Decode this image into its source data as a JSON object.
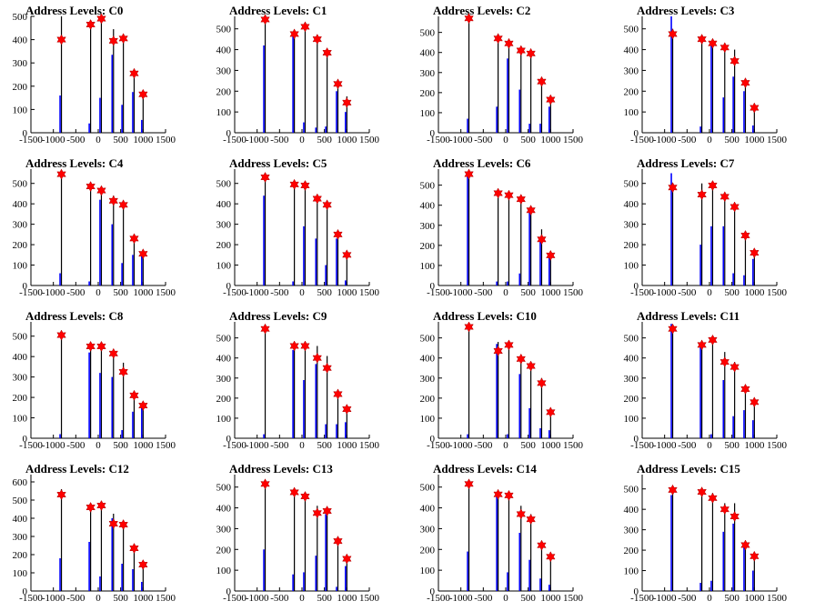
{
  "colors": {
    "black": "#000000",
    "blue": "#0000ff",
    "red": "#ff0000"
  },
  "chart_data": [
    {
      "type": "bar",
      "title": "Address Levels: C0",
      "xlim": [
        -1500,
        1500
      ],
      "ylim": [
        0,
        500
      ],
      "yticks": [
        0,
        100,
        200,
        300,
        400,
        500
      ],
      "xticks": [
        -1500,
        -1000,
        -500,
        0,
        500,
        1000,
        1500
      ],
      "levels": [
        -820,
        -170,
        70,
        340,
        560,
        800,
        1000
      ],
      "black": [
        500,
        480,
        495,
        445,
        420,
        265,
        175
      ],
      "blue": [
        160,
        40,
        150,
        335,
        120,
        175,
        55
      ],
      "markers": [
        400,
        465,
        490,
        395,
        405,
        255,
        165
      ]
    },
    {
      "type": "bar",
      "title": "Address Levels: C1",
      "xlim": [
        -1500,
        1500
      ],
      "ylim": [
        0,
        560
      ],
      "yticks": [
        0,
        100,
        200,
        300,
        400,
        500
      ],
      "xticks": [
        -1500,
        -1000,
        -500,
        0,
        500,
        1000,
        1500
      ],
      "levels": [
        -820,
        -170,
        70,
        340,
        560,
        800,
        1000
      ],
      "black": [
        560,
        495,
        525,
        470,
        400,
        245,
        175
      ],
      "blue": [
        420,
        470,
        50,
        25,
        30,
        200,
        100
      ],
      "markers": [
        545,
        475,
        510,
        450,
        385,
        235,
        145
      ]
    },
    {
      "type": "bar",
      "title": "Address Levels: C2",
      "xlim": [
        -1500,
        1500
      ],
      "ylim": [
        0,
        580
      ],
      "yticks": [
        0,
        100,
        200,
        300,
        400,
        500
      ],
      "xticks": [
        -1500,
        -1000,
        -500,
        0,
        500,
        1000,
        1500
      ],
      "levels": [
        -820,
        -170,
        70,
        340,
        560,
        800,
        1000
      ],
      "black": [
        580,
        490,
        460,
        420,
        410,
        270,
        180
      ],
      "blue": [
        70,
        130,
        370,
        215,
        45,
        45,
        130
      ],
      "markers": [
        570,
        470,
        445,
        410,
        395,
        255,
        165
      ]
    },
    {
      "type": "bar",
      "title": "Address Levels: C3",
      "xlim": [
        -1500,
        1500
      ],
      "ylim": [
        0,
        560
      ],
      "yticks": [
        0,
        100,
        200,
        300,
        400,
        500
      ],
      "xticks": [
        -1500,
        -1000,
        -500,
        0,
        500,
        1000,
        1500
      ],
      "levels": [
        -820,
        -170,
        70,
        340,
        560,
        800,
        1000
      ],
      "black": [
        500,
        465,
        450,
        420,
        400,
        255,
        130
      ],
      "blue": [
        560,
        30,
        430,
        170,
        270,
        200,
        35
      ],
      "markers": [
        475,
        450,
        430,
        410,
        345,
        240,
        120
      ]
    },
    {
      "type": "bar",
      "title": "Address Levels: C4",
      "xlim": [
        -1500,
        1500
      ],
      "ylim": [
        0,
        570
      ],
      "yticks": [
        0,
        100,
        200,
        300,
        400,
        500
      ],
      "xticks": [
        -1500,
        -1000,
        -500,
        0,
        500,
        1000,
        1500
      ],
      "levels": [
        -820,
        -170,
        70,
        340,
        560,
        800,
        1000
      ],
      "black": [
        560,
        490,
        475,
        440,
        400,
        240,
        165
      ],
      "blue": [
        60,
        20,
        420,
        300,
        110,
        150,
        160
      ],
      "markers": [
        545,
        485,
        465,
        415,
        395,
        230,
        155
      ]
    },
    {
      "type": "bar",
      "title": "Address Levels: C5",
      "xlim": [
        -1500,
        1500
      ],
      "ylim": [
        0,
        570
      ],
      "yticks": [
        0,
        100,
        200,
        300,
        400,
        500
      ],
      "xticks": [
        -1500,
        -1000,
        -500,
        0,
        500,
        1000,
        1500
      ],
      "levels": [
        -820,
        -170,
        70,
        340,
        560,
        800,
        1000
      ],
      "black": [
        545,
        500,
        480,
        430,
        400,
        260,
        160
      ],
      "blue": [
        440,
        20,
        290,
        230,
        100,
        230,
        25
      ],
      "markers": [
        530,
        495,
        490,
        425,
        395,
        250,
        150
      ]
    },
    {
      "type": "bar",
      "title": "Address Levels: C6",
      "xlim": [
        -1500,
        1500
      ],
      "ylim": [
        0,
        580
      ],
      "yticks": [
        0,
        100,
        200,
        300,
        400,
        500
      ],
      "xticks": [
        -1500,
        -1000,
        -500,
        0,
        500,
        1000,
        1500
      ],
      "levels": [
        -820,
        -170,
        70,
        340,
        560,
        800,
        1000
      ],
      "black": [
        570,
        470,
        460,
        445,
        390,
        280,
        165
      ],
      "blue": [
        550,
        20,
        20,
        60,
        370,
        220,
        150
      ],
      "markers": [
        555,
        460,
        450,
        430,
        375,
        230,
        150
      ]
    },
    {
      "type": "bar",
      "title": "Address Levels: C7",
      "xlim": [
        -1500,
        1500
      ],
      "ylim": [
        0,
        570
      ],
      "yticks": [
        0,
        100,
        200,
        300,
        400,
        500
      ],
      "xticks": [
        -1500,
        -1000,
        -500,
        0,
        500,
        1000,
        1500
      ],
      "levels": [
        -820,
        -170,
        70,
        340,
        560,
        800,
        1000
      ],
      "black": [
        500,
        500,
        500,
        440,
        400,
        260,
        170
      ],
      "blue": [
        550,
        200,
        290,
        290,
        60,
        50,
        130
      ],
      "markers": [
        480,
        445,
        490,
        435,
        385,
        245,
        160
      ]
    },
    {
      "type": "bar",
      "title": "Address Levels: C8",
      "xlim": [
        -1500,
        1500
      ],
      "ylim": [
        0,
        570
      ],
      "yticks": [
        0,
        100,
        200,
        300,
        400,
        500
      ],
      "xticks": [
        -1500,
        -1000,
        -500,
        0,
        500,
        1000,
        1500
      ],
      "levels": [
        -820,
        -170,
        70,
        340,
        560,
        800,
        1000
      ],
      "black": [
        520,
        460,
        460,
        430,
        370,
        230,
        175
      ],
      "blue": [
        20,
        420,
        320,
        300,
        40,
        130,
        160
      ],
      "markers": [
        505,
        450,
        450,
        415,
        325,
        210,
        160
      ]
    },
    {
      "type": "bar",
      "title": "Address Levels: C9",
      "xlim": [
        -1500,
        1500
      ],
      "ylim": [
        0,
        580
      ],
      "yticks": [
        0,
        100,
        200,
        300,
        400,
        500
      ],
      "xticks": [
        -1500,
        -1000,
        -500,
        0,
        500,
        1000,
        1500
      ],
      "levels": [
        -820,
        -170,
        70,
        340,
        560,
        800,
        1000
      ],
      "black": [
        560,
        470,
        470,
        460,
        410,
        240,
        160
      ],
      "blue": [
        20,
        440,
        290,
        370,
        70,
        70,
        80
      ],
      "markers": [
        545,
        460,
        460,
        400,
        350,
        220,
        145
      ]
    },
    {
      "type": "bar",
      "title": "Address Levels: C10",
      "xlim": [
        -1500,
        1500
      ],
      "ylim": [
        0,
        580
      ],
      "yticks": [
        0,
        100,
        200,
        300,
        400,
        500
      ],
      "xticks": [
        -1500,
        -1000,
        -500,
        0,
        500,
        1000,
        1500
      ],
      "levels": [
        -820,
        -170,
        70,
        340,
        560,
        800,
        1000
      ],
      "black": [
        570,
        480,
        480,
        410,
        380,
        300,
        150
      ],
      "blue": [
        20,
        470,
        20,
        320,
        150,
        50,
        40
      ],
      "markers": [
        555,
        435,
        465,
        395,
        360,
        275,
        130
      ]
    },
    {
      "type": "bar",
      "title": "Address Levels: C11",
      "xlim": [
        -1500,
        1500
      ],
      "ylim": [
        0,
        580
      ],
      "yticks": [
        0,
        100,
        200,
        300,
        400,
        500
      ],
      "xticks": [
        -1500,
        -1000,
        -500,
        0,
        500,
        1000,
        1500
      ],
      "levels": [
        -820,
        -170,
        70,
        340,
        560,
        800,
        1000
      ],
      "black": [
        560,
        480,
        500,
        430,
        380,
        260,
        190
      ],
      "blue": [
        570,
        470,
        20,
        290,
        110,
        140,
        90
      ],
      "markers": [
        545,
        465,
        490,
        380,
        355,
        245,
        180
      ]
    },
    {
      "type": "bar",
      "title": "Address Levels: C12",
      "xlim": [
        -1500,
        1500
      ],
      "ylim": [
        0,
        640
      ],
      "yticks": [
        0,
        100,
        200,
        300,
        400,
        500,
        600
      ],
      "xticks": [
        -1500,
        -1000,
        -500,
        0,
        500,
        1000,
        1500
      ],
      "levels": [
        -820,
        -170,
        70,
        340,
        560,
        800,
        1000
      ],
      "black": [
        560,
        470,
        480,
        425,
        380,
        250,
        160
      ],
      "blue": [
        180,
        270,
        80,
        400,
        150,
        120,
        50
      ],
      "markers": [
        530,
        460,
        470,
        370,
        365,
        235,
        145
      ]
    },
    {
      "type": "bar",
      "title": "Address Levels: C13",
      "xlim": [
        -1500,
        1500
      ],
      "ylim": [
        0,
        560
      ],
      "yticks": [
        0,
        100,
        200,
        300,
        400,
        500
      ],
      "xticks": [
        -1500,
        -1000,
        -500,
        0,
        500,
        1000,
        1500
      ],
      "levels": [
        -820,
        -170,
        70,
        340,
        560,
        800,
        1000
      ],
      "black": [
        530,
        490,
        470,
        410,
        400,
        260,
        170
      ],
      "blue": [
        200,
        80,
        90,
        170,
        370,
        20,
        120
      ],
      "markers": [
        515,
        475,
        455,
        375,
        385,
        240,
        155
      ]
    },
    {
      "type": "bar",
      "title": "Address Levels: C14",
      "xlim": [
        -1500,
        1500
      ],
      "ylim": [
        0,
        560
      ],
      "yticks": [
        0,
        100,
        200,
        300,
        400,
        500
      ],
      "xticks": [
        -1500,
        -1000,
        -500,
        0,
        500,
        1000,
        1500
      ],
      "levels": [
        -820,
        -170,
        70,
        340,
        560,
        800,
        1000
      ],
      "black": [
        530,
        480,
        470,
        410,
        370,
        240,
        180
      ],
      "blue": [
        190,
        460,
        90,
        280,
        150,
        60,
        30
      ],
      "markers": [
        515,
        465,
        460,
        370,
        345,
        220,
        165
      ]
    },
    {
      "type": "bar",
      "title": "Address Levels: C15",
      "xlim": [
        -1500,
        1500
      ],
      "ylim": [
        0,
        570
      ],
      "yticks": [
        0,
        100,
        200,
        300,
        400,
        500
      ],
      "xticks": [
        -1500,
        -1000,
        -500,
        0,
        500,
        1000,
        1500
      ],
      "levels": [
        -820,
        -170,
        70,
        340,
        560,
        800,
        1000
      ],
      "black": [
        510,
        500,
        480,
        430,
        430,
        240,
        190
      ],
      "blue": [
        470,
        40,
        50,
        290,
        330,
        220,
        100
      ],
      "markers": [
        495,
        485,
        455,
        400,
        365,
        225,
        170
      ]
    }
  ]
}
